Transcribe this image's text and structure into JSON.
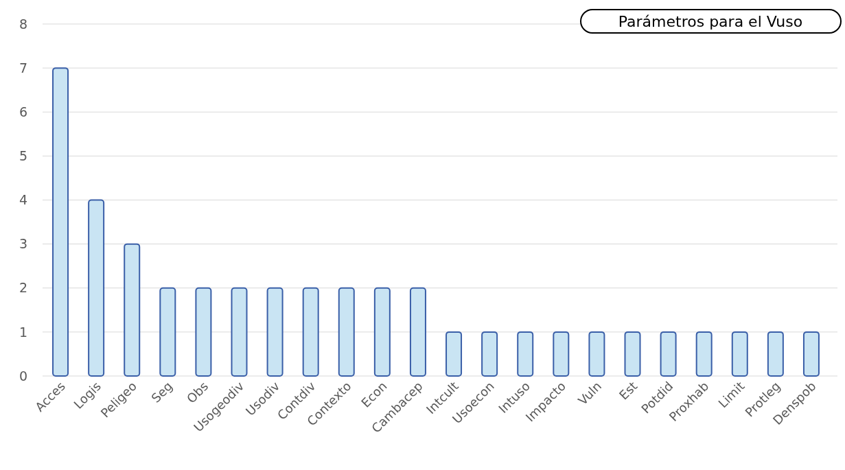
{
  "chart_data": {
    "type": "bar",
    "title": "Parámetros para el Vuso",
    "categories": [
      "Acces",
      "Logis",
      "Peligeo",
      "Seg",
      "Obs",
      "Usogeodiv",
      "Usodiv",
      "Contdiv",
      "Contexto",
      "Econ",
      "Cambacep",
      "Intcult",
      "Usoecon",
      "Intuso",
      "Impacto",
      "Vuln",
      "Est",
      "Potdid",
      "Proxhab",
      "Limit",
      "Protleg",
      "Denspob"
    ],
    "values": [
      7,
      4,
      3,
      2,
      2,
      2,
      2,
      2,
      2,
      2,
      2,
      1,
      1,
      1,
      1,
      1,
      1,
      1,
      1,
      1,
      1,
      1
    ],
    "color": "#c9e4f3",
    "ylim": [
      0,
      8
    ],
    "yticks": [
      0,
      1,
      2,
      3,
      4,
      5,
      6,
      7,
      8
    ],
    "grid": "y"
  }
}
